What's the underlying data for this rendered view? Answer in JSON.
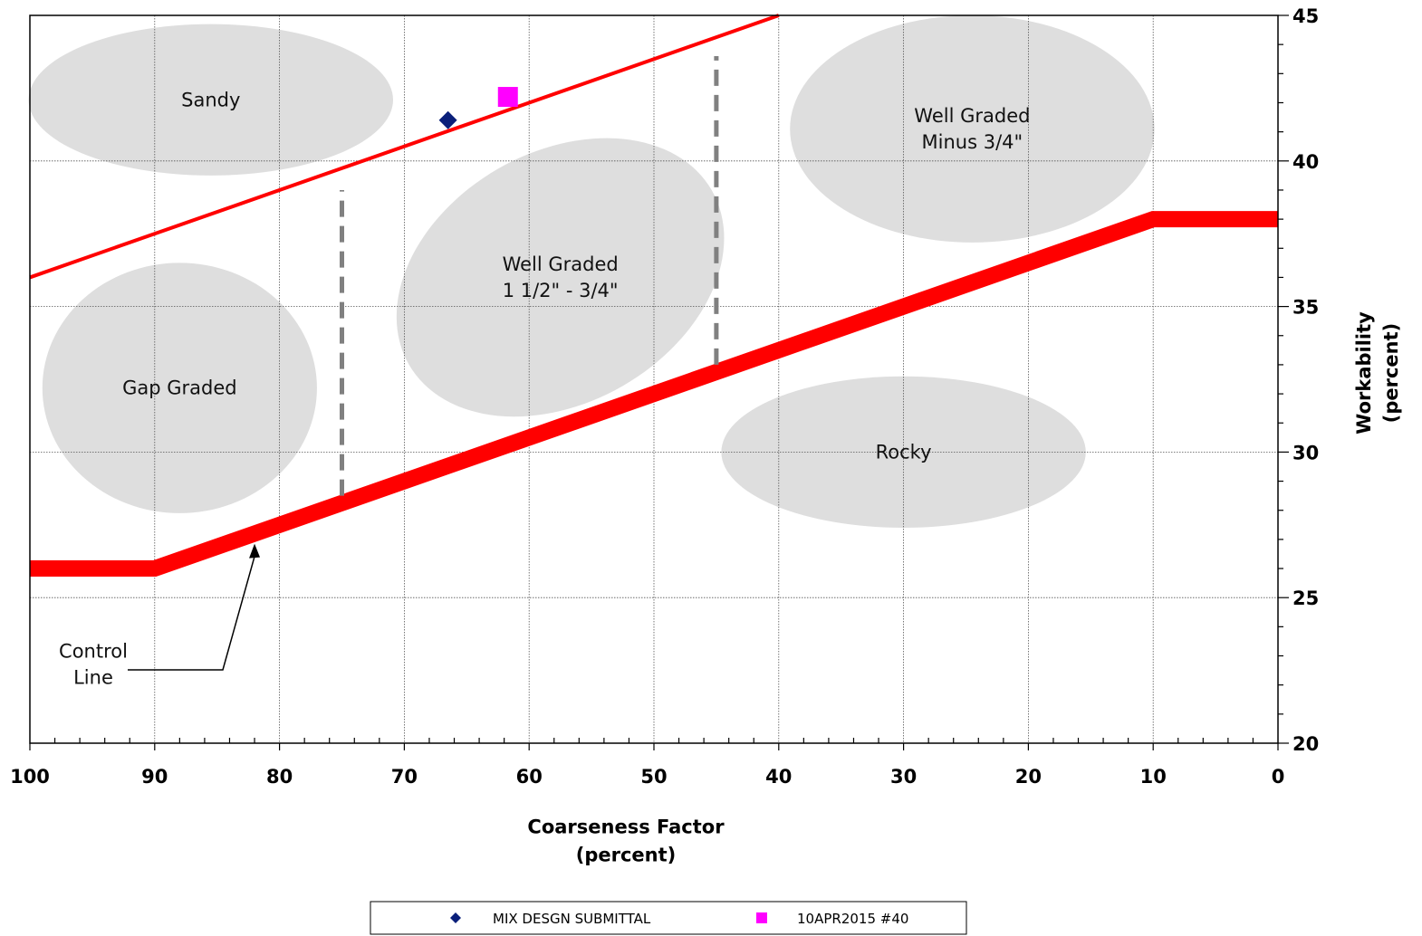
{
  "chart_data": {
    "type": "scatter",
    "title": "",
    "xlabel": [
      "Coarseness Factor",
      "(percent)"
    ],
    "ylabel": [
      "Workability",
      "(percent)"
    ],
    "xlim": [
      100,
      0
    ],
    "ylim": [
      20,
      45
    ],
    "x_reversed": true,
    "x_ticks": [
      "100",
      "90",
      "80",
      "70",
      "60",
      "50",
      "40",
      "30",
      "20",
      "10",
      "0"
    ],
    "y_ticks": [
      "20",
      "25",
      "30",
      "35",
      "40",
      "45"
    ],
    "y_axis_side": "right",
    "grid": true,
    "legend_position": "bottom-center",
    "colors": {
      "control_line": "#ff0000",
      "zones": "#dedede",
      "boundaries": "#808080",
      "series_1": "#0a1f7a",
      "series_2": "#ff00ff"
    },
    "series": [
      {
        "name": "MIX DESGN SUBMITTAL",
        "marker": "diamond",
        "points": [
          {
            "x": 66.5,
            "y": 41.4
          }
        ]
      },
      {
        "name": "10APR2015 #40",
        "marker": "square",
        "points": [
          {
            "x": 61.7,
            "y": 42.2
          }
        ]
      }
    ],
    "control_line": {
      "x": [
        100,
        90,
        10,
        0
      ],
      "y": [
        26,
        26,
        38,
        38
      ]
    },
    "upper_line": {
      "x": [
        100,
        40
      ],
      "y": [
        36,
        45
      ]
    },
    "zone_boundaries": [
      {
        "x": 75,
        "y": [
          28.5,
          39
        ]
      },
      {
        "x": 45,
        "y": [
          33,
          43.6
        ]
      }
    ],
    "zones": [
      {
        "label": [
          "Sandy"
        ],
        "cx": 85.5,
        "cy": 42.1,
        "rx": 14.6,
        "ry": 2.6,
        "rotate": 0
      },
      {
        "label": [
          "Gap Graded"
        ],
        "cx": 88,
        "cy": 32.2,
        "rx": 11,
        "ry": 4.3,
        "rotate": 0
      },
      {
        "label": [
          "Well Graded",
          "1 1/2\" - 3/4\""
        ],
        "cx": 57.5,
        "cy": 36,
        "rx": 14,
        "ry": 4.3,
        "rotate": -30
      },
      {
        "label": [
          "Well Graded",
          "Minus 3/4\""
        ],
        "cx": 24.5,
        "cy": 41.1,
        "rx": 14.6,
        "ry": 3.9,
        "rotate": 0
      },
      {
        "label": [
          "Rocky"
        ],
        "cx": 30,
        "cy": 30,
        "rx": 14.6,
        "ry": 2.6,
        "rotate": 0
      }
    ],
    "annotations": [
      {
        "text": [
          "Control",
          "Line"
        ],
        "arrow_to": {
          "x": 82,
          "y": 27.1
        }
      }
    ]
  }
}
